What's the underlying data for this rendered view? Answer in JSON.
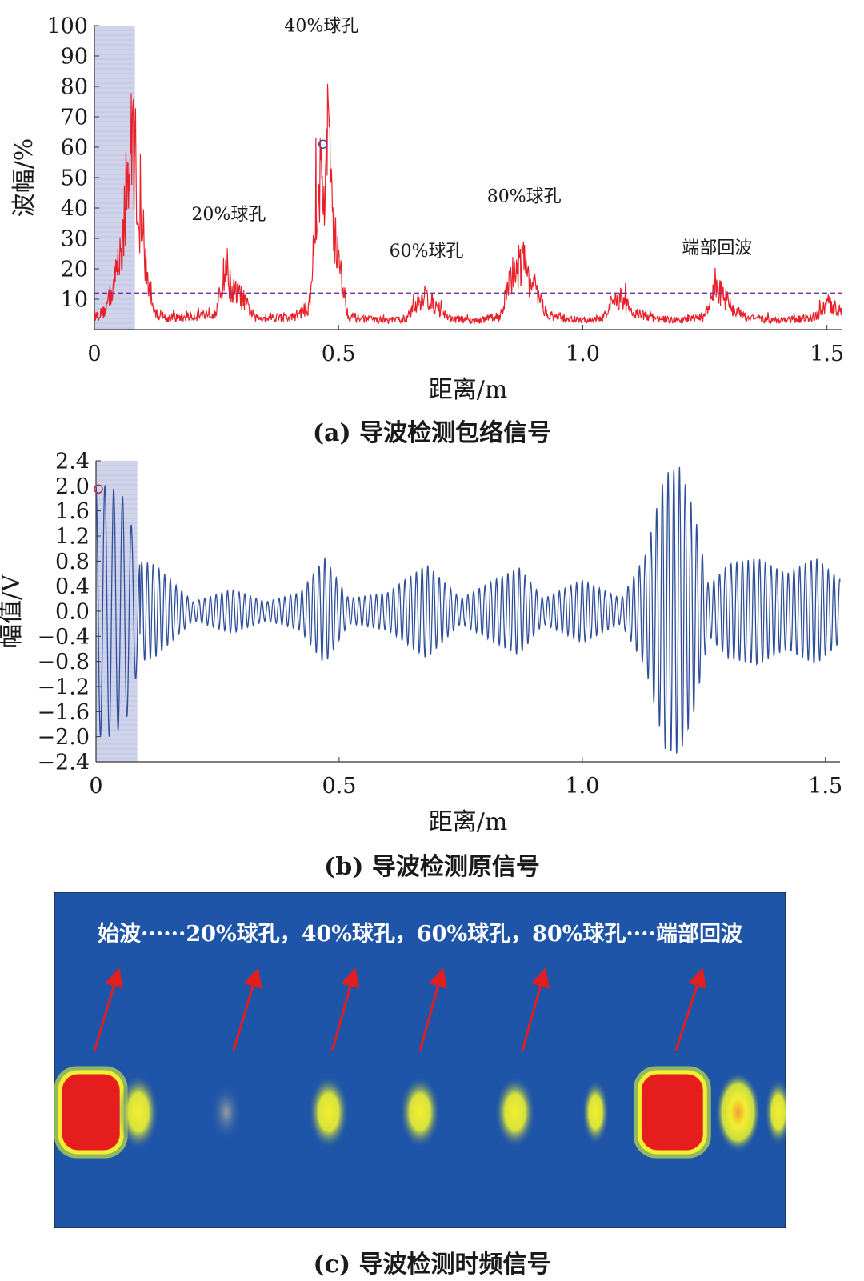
{
  "captions": {
    "a": "(a) 导波检测包络信号",
    "b": "(b) 导波检测原信号",
    "c": "(c) 导波检测时频信号"
  },
  "chart_data": [
    {
      "type": "line",
      "panel": "a",
      "xlabel": "距离/m",
      "ylabel": "波幅/%",
      "xlim": [
        0,
        1.53
      ],
      "ylim": [
        0,
        100
      ],
      "xticks": [
        0,
        0.5,
        1.0,
        1.5
      ],
      "xtick_labels": [
        "0",
        "0.5",
        "1.0",
        "1.5"
      ],
      "yticks": [
        10,
        20,
        30,
        40,
        50,
        60,
        70,
        80,
        90,
        100
      ],
      "ytick_labels": [
        "10",
        "20",
        "30",
        "40",
        "50",
        "60",
        "70",
        "80",
        "90",
        "100"
      ],
      "color": "#e8202a",
      "threshold": {
        "y": 12,
        "color": "#7b2f9a"
      },
      "shaded_region": {
        "x": [
          0,
          0.083
        ],
        "color": "#c8cce8"
      },
      "marker": {
        "x": 0.468,
        "y": 61,
        "color": "#4a4aa0"
      },
      "series": [
        {
          "x": [
            0.0,
            0.02,
            0.04,
            0.06,
            0.07,
            0.08,
            0.09,
            0.1,
            0.12,
            0.15,
            0.2,
            0.25,
            0.27,
            0.28,
            0.3,
            0.33,
            0.36,
            0.4,
            0.44,
            0.46,
            0.47,
            0.48,
            0.49,
            0.5,
            0.52,
            0.55,
            0.6,
            0.64,
            0.66,
            0.68,
            0.7,
            0.73,
            0.78,
            0.83,
            0.86,
            0.88,
            0.9,
            0.93,
            0.97,
            1.0,
            1.04,
            1.06,
            1.08,
            1.1,
            1.15,
            1.2,
            1.25,
            1.27,
            1.29,
            1.31,
            1.35,
            1.4,
            1.45,
            1.48,
            1.5,
            1.53
          ],
          "y": [
            6,
            8,
            20,
            45,
            70,
            90,
            55,
            35,
            8,
            5,
            6,
            8,
            30,
            18,
            15,
            5,
            6,
            5,
            10,
            70,
            60,
            90,
            50,
            30,
            6,
            5,
            4,
            5,
            12,
            15,
            10,
            5,
            4,
            6,
            28,
            30,
            18,
            6,
            5,
            4,
            5,
            12,
            14,
            8,
            5,
            4,
            6,
            18,
            15,
            8,
            5,
            4,
            5,
            6,
            12,
            8
          ]
        }
      ]
    },
    {
      "type": "line",
      "panel": "b",
      "xlabel": "距离/m",
      "ylabel": "幅值/V",
      "xlim": [
        0,
        1.53
      ],
      "ylim": [
        -2.4,
        2.4
      ],
      "xticks": [
        0,
        0.5,
        1.0,
        1.5
      ],
      "xtick_labels": [
        "0",
        "0.5",
        "1.0",
        "1.5"
      ],
      "yticks": [
        2.4,
        2.0,
        1.6,
        1.2,
        0.8,
        0.4,
        0.0,
        -0.4,
        -0.8,
        -1.2,
        -1.6,
        -2.0,
        -2.4
      ],
      "ytick_labels": [
        "2.4",
        "2.0",
        "1.6",
        "1.2",
        "0.8",
        "0.4",
        "0.0",
        "−0.4",
        "−0.8",
        "−1.2",
        "−1.6",
        "−2.0",
        "−2.4"
      ],
      "color": "#2f4f9a",
      "shaded_region": {
        "x": [
          0,
          0.085
        ],
        "color": "#c8cce8"
      },
      "marker": {
        "x": 0.005,
        "y": 1.95,
        "color": "#c0302a"
      },
      "series": [
        {
          "name_hidden": "",
          "envelope_x": [
            0.0,
            0.03,
            0.06,
            0.09,
            0.12,
            0.2,
            0.28,
            0.35,
            0.42,
            0.47,
            0.52,
            0.6,
            0.68,
            0.75,
            0.82,
            0.87,
            0.92,
            1.0,
            1.08,
            1.13,
            1.17,
            1.2,
            1.23,
            1.26,
            1.3,
            1.36,
            1.42,
            1.48,
            1.53
          ],
          "envelope_y": [
            2.0,
            2.0,
            1.8,
            0.8,
            0.75,
            0.15,
            0.35,
            0.15,
            0.3,
            0.85,
            0.2,
            0.3,
            0.75,
            0.2,
            0.5,
            0.7,
            0.2,
            0.5,
            0.2,
            0.9,
            2.2,
            2.3,
            1.6,
            0.4,
            0.75,
            0.85,
            0.6,
            0.85,
            0.5
          ]
        }
      ]
    },
    {
      "type": "heatmap",
      "panel": "c",
      "annotation": "始波······20%球孔，40%球孔，60%球孔，80%球孔····端部回波",
      "background": "#1f55a8",
      "blobs": [
        {
          "x": 0.05,
          "intensity": 1.0,
          "w": 0.075
        },
        {
          "x": 0.115,
          "intensity": 0.6,
          "w": 0.045
        },
        {
          "x": 0.235,
          "intensity": 0.15,
          "w": 0.035
        },
        {
          "x": 0.375,
          "intensity": 0.55,
          "w": 0.045
        },
        {
          "x": 0.5,
          "intensity": 0.5,
          "w": 0.045
        },
        {
          "x": 0.63,
          "intensity": 0.5,
          "w": 0.045
        },
        {
          "x": 0.74,
          "intensity": 0.35,
          "w": 0.03
        },
        {
          "x": 0.845,
          "intensity": 1.0,
          "w": 0.08
        },
        {
          "x": 0.935,
          "intensity": 0.7,
          "w": 0.05
        },
        {
          "x": 0.99,
          "intensity": 0.4,
          "w": 0.03
        }
      ],
      "arrows": [
        {
          "x0": 0.055,
          "x1": 0.087
        },
        {
          "x0": 0.245,
          "x1": 0.277
        },
        {
          "x0": 0.38,
          "x1": 0.41
        },
        {
          "x0": 0.5,
          "x1": 0.53
        },
        {
          "x0": 0.64,
          "x1": 0.67
        },
        {
          "x0": 0.85,
          "x1": 0.885
        }
      ],
      "arrow_color": "#e02020"
    }
  ],
  "annotations_a": [
    {
      "text": "40%球孔",
      "x": 0.465,
      "y": 98
    },
    {
      "text": "20%球孔",
      "x": 0.275,
      "y": 36
    },
    {
      "text": "60%球孔",
      "x": 0.68,
      "y": 24
    },
    {
      "text": "80%球孔",
      "x": 0.88,
      "y": 42
    },
    {
      "text": "端部回波",
      "x": 1.275,
      "y": 25
    }
  ]
}
